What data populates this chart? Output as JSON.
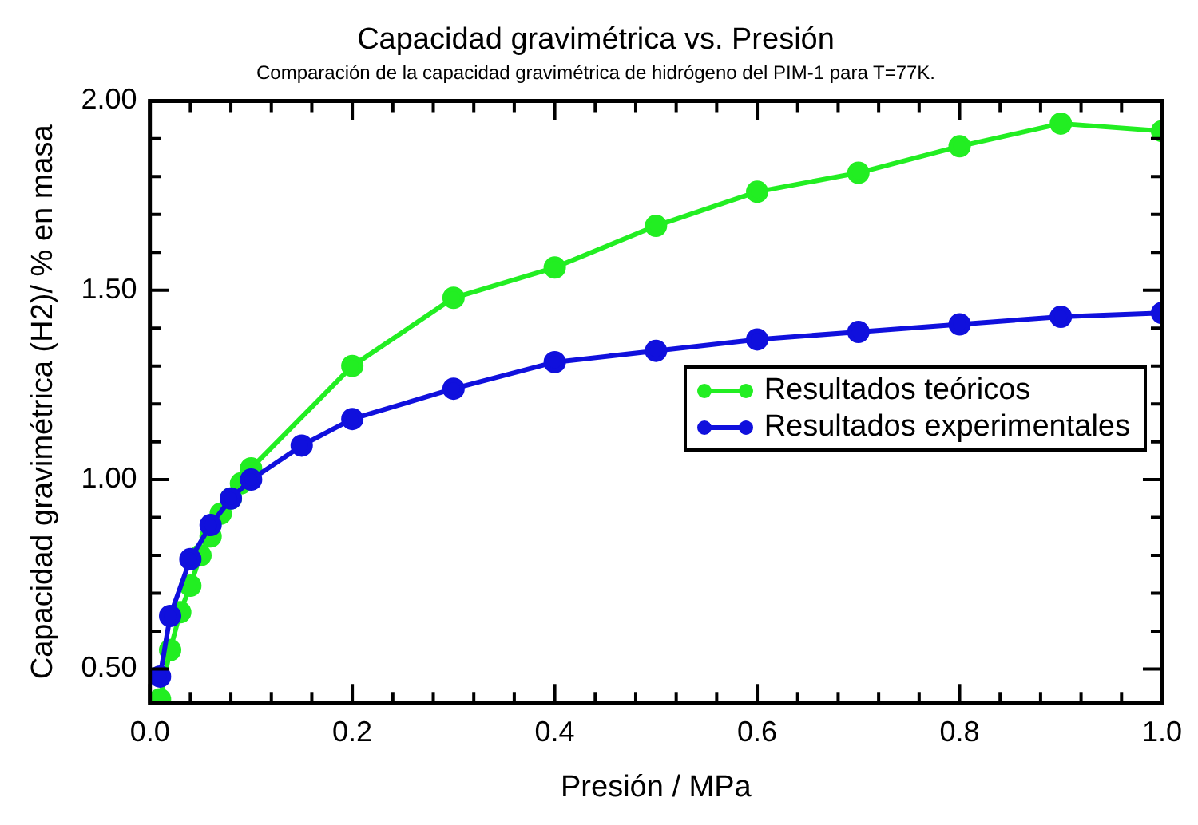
{
  "chart_data": {
    "type": "line",
    "title": "Capacidad gravimétrica vs. Presión",
    "subtitle": "Comparación de la capacidad gravimétrica de hidrógeno del PIM-1 para T=77K.",
    "xlabel": "Presión / MPa",
    "ylabel": "Capacidad gravimétrica (H2)/ % en masa",
    "xlim": [
      0,
      1
    ],
    "ylim": [
      0.41,
      2
    ],
    "xticks": [
      {
        "value": 0,
        "label": "0.0"
      },
      {
        "value": 0.04,
        "label": null
      },
      {
        "value": 0.08,
        "label": null
      },
      {
        "value": 0.12,
        "label": null
      },
      {
        "value": 0.16,
        "label": null
      },
      {
        "value": 0.2,
        "label": "0.2"
      },
      {
        "value": 0.24,
        "label": null
      },
      {
        "value": 0.28,
        "label": null
      },
      {
        "value": 0.32,
        "label": null
      },
      {
        "value": 0.36,
        "label": null
      },
      {
        "value": 0.4,
        "label": "0.4"
      },
      {
        "value": 0.44,
        "label": null
      },
      {
        "value": 0.48,
        "label": null
      },
      {
        "value": 0.52,
        "label": null
      },
      {
        "value": 0.56,
        "label": null
      },
      {
        "value": 0.6,
        "label": "0.6"
      },
      {
        "value": 0.64,
        "label": null
      },
      {
        "value": 0.68,
        "label": null
      },
      {
        "value": 0.72,
        "label": null
      },
      {
        "value": 0.76,
        "label": null
      },
      {
        "value": 0.8,
        "label": "0.8"
      },
      {
        "value": 0.84,
        "label": null
      },
      {
        "value": 0.88,
        "label": null
      },
      {
        "value": 0.92,
        "label": null
      },
      {
        "value": 0.96,
        "label": null
      },
      {
        "value": 1,
        "label": "1.0"
      }
    ],
    "yticks": [
      {
        "value": 0.5,
        "label": "0.50"
      },
      {
        "value": 0.6,
        "label": null
      },
      {
        "value": 0.7,
        "label": null
      },
      {
        "value": 0.8,
        "label": null
      },
      {
        "value": 0.9,
        "label": null
      },
      {
        "value": 1,
        "label": "1.00"
      },
      {
        "value": 1.1,
        "label": null
      },
      {
        "value": 1.2,
        "label": null
      },
      {
        "value": 1.3,
        "label": null
      },
      {
        "value": 1.4,
        "label": null
      },
      {
        "value": 1.5,
        "label": "1.50"
      },
      {
        "value": 1.6,
        "label": null
      },
      {
        "value": 1.7,
        "label": null
      },
      {
        "value": 1.8,
        "label": null
      },
      {
        "value": 1.9,
        "label": null
      },
      {
        "value": 2,
        "label": "2.00"
      }
    ],
    "grid": false,
    "legend": "right",
    "marker": "circle",
    "line_style": "solid",
    "series": [
      {
        "name": "Resultados teóricos",
        "color": "#22ee22",
        "x": [
          0.01,
          0.02,
          0.03,
          0.04,
          0.05,
          0.06,
          0.07,
          0.08,
          0.09,
          0.1,
          0.2,
          0.3,
          0.4,
          0.5,
          0.6,
          0.7,
          0.8,
          0.9,
          1.0
        ],
        "values": [
          0.42,
          0.55,
          0.65,
          0.72,
          0.8,
          0.85,
          0.91,
          0.95,
          0.99,
          1.03,
          1.3,
          1.48,
          1.56,
          1.67,
          1.76,
          1.81,
          1.88,
          1.94,
          1.92
        ]
      },
      {
        "name": "Resultados experimentales",
        "color": "#1010dd",
        "x": [
          0.01,
          0.02,
          0.04,
          0.06,
          0.08,
          0.1,
          0.15,
          0.2,
          0.3,
          0.4,
          0.5,
          0.6,
          0.7,
          0.8,
          0.9,
          1.0
        ],
        "values": [
          0.48,
          0.64,
          0.79,
          0.88,
          0.95,
          1.0,
          1.09,
          1.16,
          1.24,
          1.31,
          1.34,
          1.37,
          1.39,
          1.41,
          1.43,
          1.44
        ]
      }
    ]
  }
}
